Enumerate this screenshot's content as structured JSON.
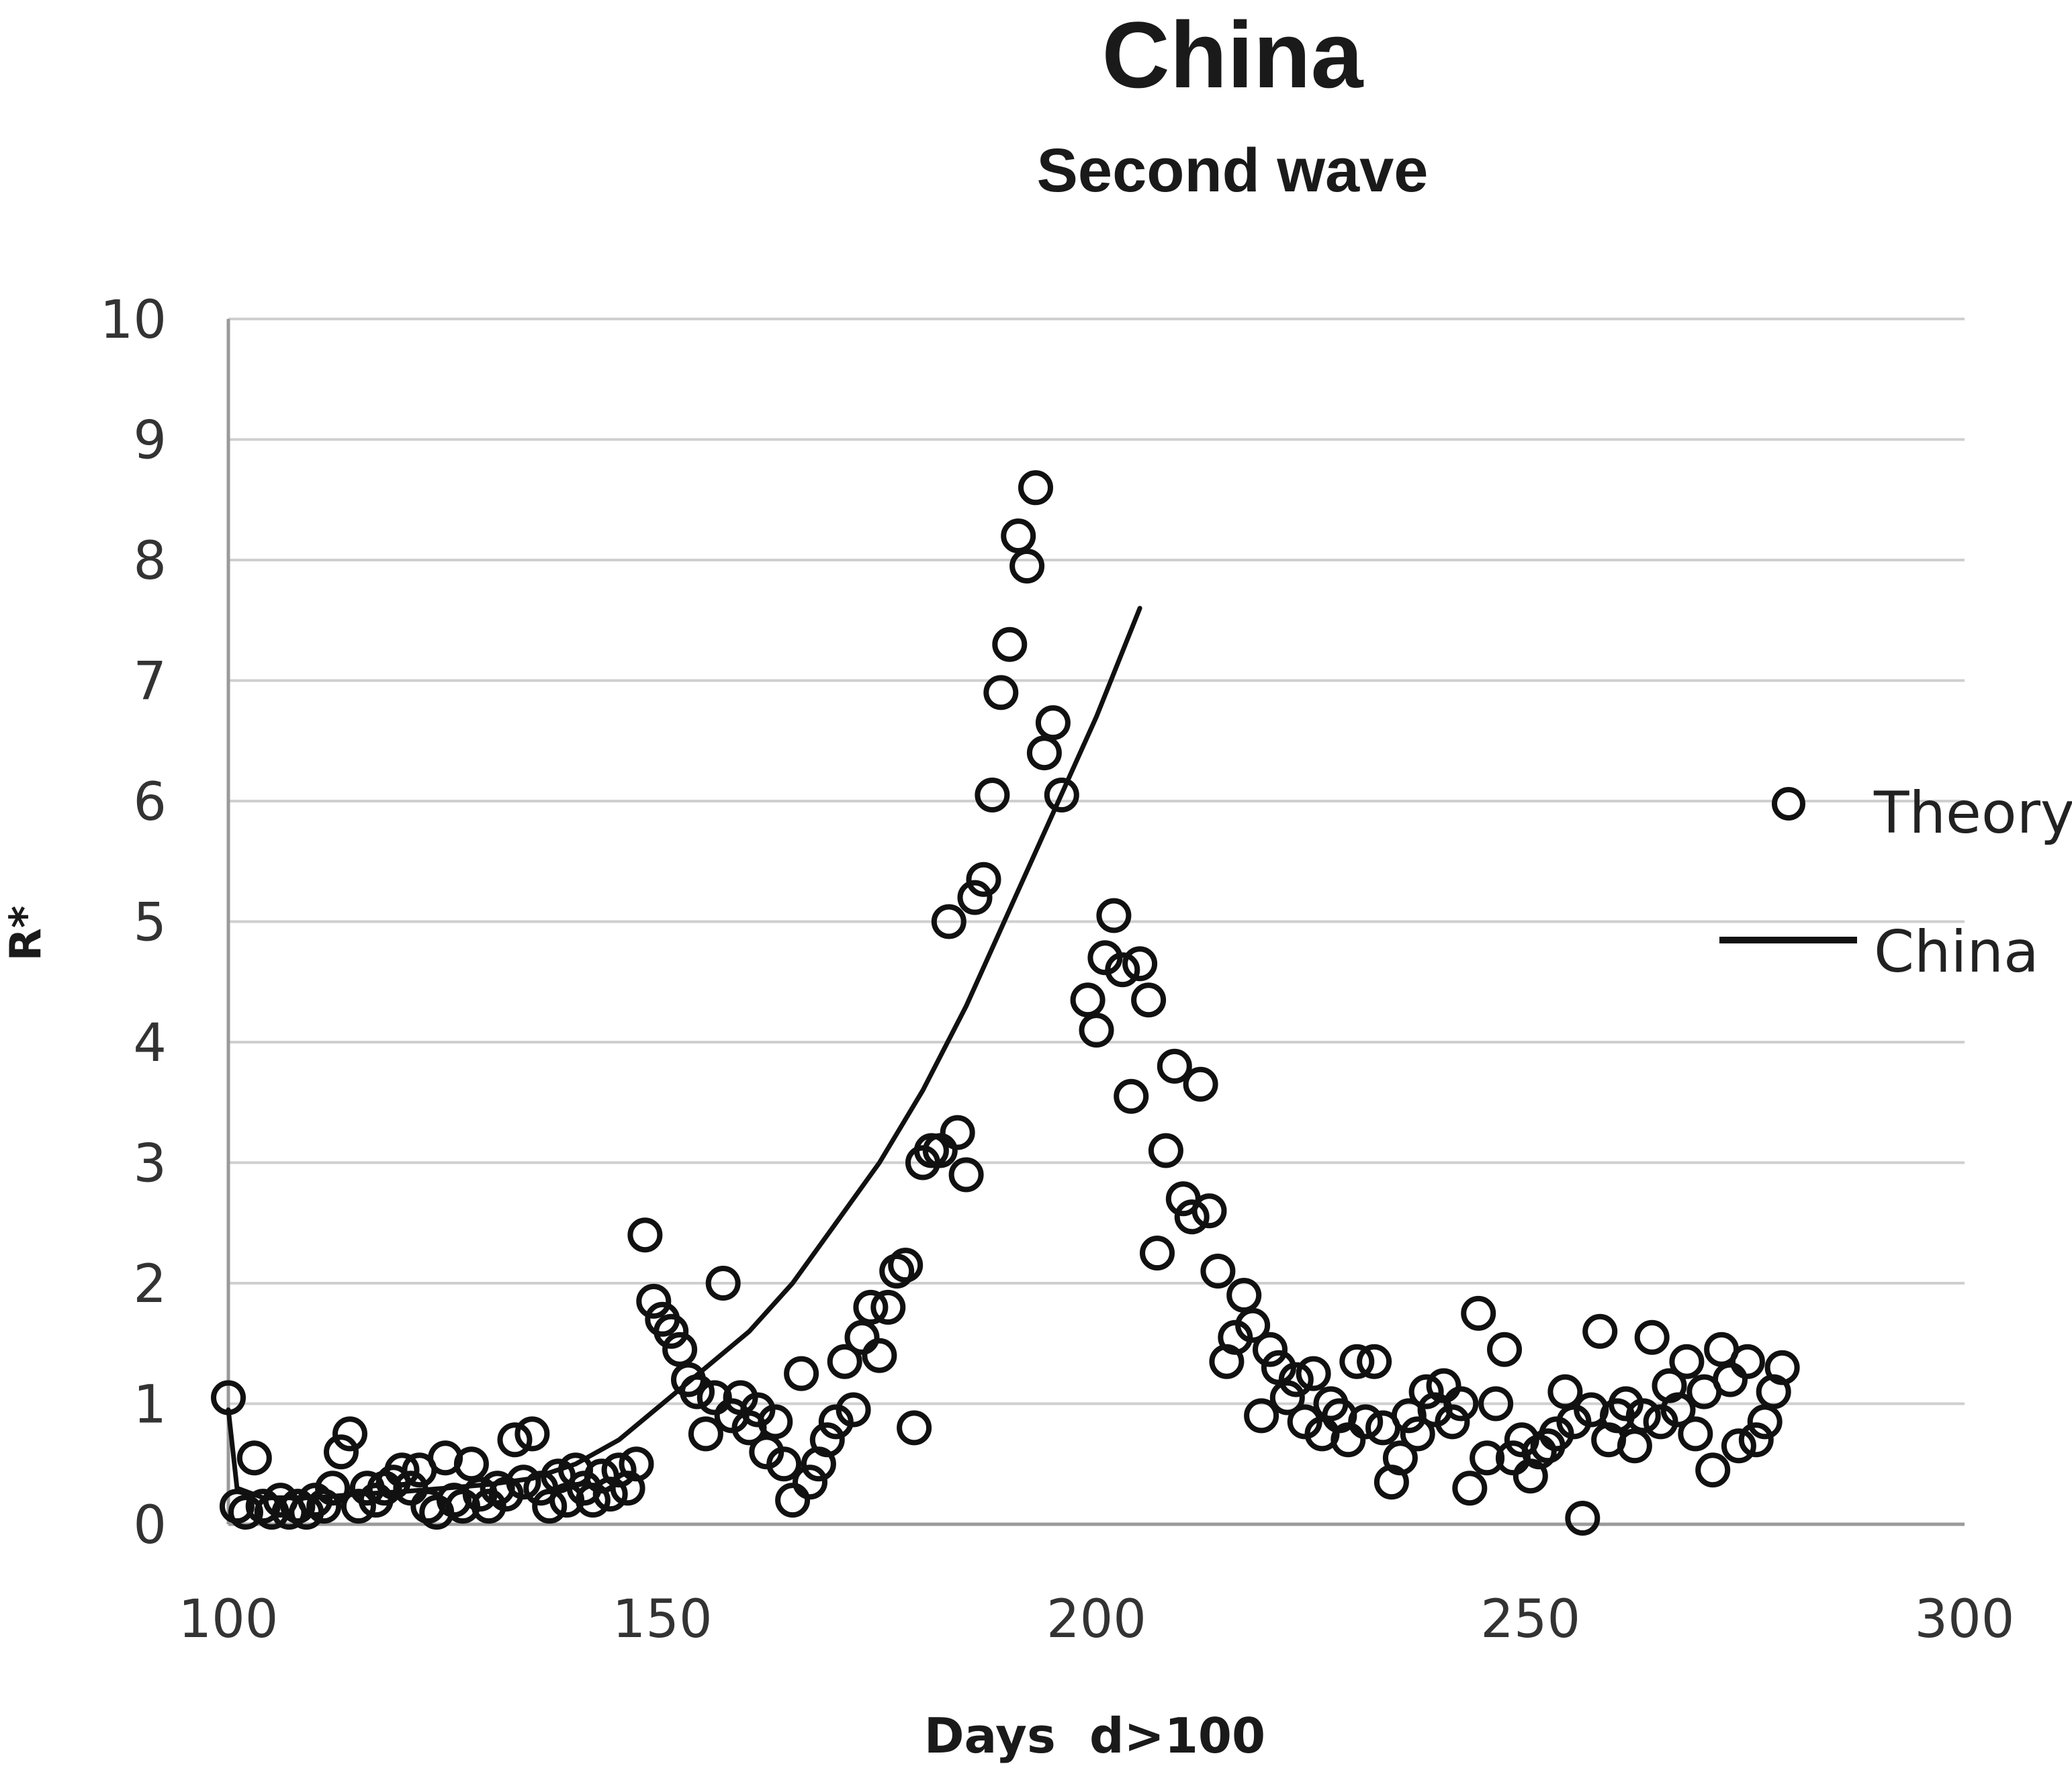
{
  "chart_data": {
    "type": "scatter",
    "title": "China",
    "subtitle": "Second wave",
    "xlabel": "Days  d>100",
    "ylabel": "R*",
    "xlim": [
      100,
      300
    ],
    "ylim": [
      0,
      10
    ],
    "x_ticks": [
      "100",
      "150",
      "200",
      "250",
      "300"
    ],
    "y_ticks": [
      "0",
      "1",
      "2",
      "3",
      "4",
      "5",
      "6",
      "7",
      "8",
      "9",
      "10"
    ],
    "grid": "horizontal",
    "legend_position": "right",
    "colors": {
      "marker": "#111111",
      "line": "#111111",
      "grid": "#cfcfcf"
    },
    "series": [
      {
        "name": "Theory",
        "kind": "markers",
        "marker": "open-circle",
        "points": [
          [
            100,
            1.05
          ],
          [
            101,
            0.15
          ],
          [
            102,
            0.1
          ],
          [
            103,
            0.55
          ],
          [
            104,
            0.15
          ],
          [
            105,
            0.1
          ],
          [
            106,
            0.2
          ],
          [
            107,
            0.1
          ],
          [
            108,
            0.15
          ],
          [
            109,
            0.1
          ],
          [
            110,
            0.2
          ],
          [
            111,
            0.15
          ],
          [
            112,
            0.3
          ],
          [
            113,
            0.6
          ],
          [
            114,
            0.75
          ],
          [
            115,
            0.15
          ],
          [
            116,
            0.3
          ],
          [
            117,
            0.2
          ],
          [
            118,
            0.3
          ],
          [
            119,
            0.35
          ],
          [
            120,
            0.45
          ],
          [
            121,
            0.3
          ],
          [
            122,
            0.45
          ],
          [
            123,
            0.15
          ],
          [
            124,
            0.1
          ],
          [
            125,
            0.55
          ],
          [
            126,
            0.2
          ],
          [
            127,
            0.15
          ],
          [
            128,
            0.5
          ],
          [
            129,
            0.25
          ],
          [
            130,
            0.15
          ],
          [
            131,
            0.3
          ],
          [
            132,
            0.25
          ],
          [
            133,
            0.7
          ],
          [
            134,
            0.35
          ],
          [
            135,
            0.75
          ],
          [
            136,
            0.3
          ],
          [
            137,
            0.15
          ],
          [
            138,
            0.4
          ],
          [
            139,
            0.2
          ],
          [
            140,
            0.45
          ],
          [
            141,
            0.3
          ],
          [
            142,
            0.2
          ],
          [
            143,
            0.4
          ],
          [
            144,
            0.25
          ],
          [
            145,
            0.45
          ],
          [
            146,
            0.3
          ],
          [
            147,
            0.5
          ],
          [
            148,
            2.4
          ],
          [
            149,
            1.85
          ],
          [
            150,
            1.7
          ],
          [
            151,
            1.6
          ],
          [
            152,
            1.45
          ],
          [
            153,
            1.2
          ],
          [
            154,
            1.1
          ],
          [
            155,
            0.75
          ],
          [
            156,
            1.05
          ],
          [
            157,
            2.0
          ],
          [
            158,
            0.9
          ],
          [
            159,
            1.05
          ],
          [
            160,
            0.8
          ],
          [
            161,
            0.95
          ],
          [
            162,
            0.6
          ],
          [
            163,
            0.85
          ],
          [
            164,
            0.5
          ],
          [
            165,
            0.2
          ],
          [
            166,
            1.25
          ],
          [
            167,
            0.35
          ],
          [
            168,
            0.5
          ],
          [
            169,
            0.7
          ],
          [
            170,
            0.85
          ],
          [
            171,
            1.35
          ],
          [
            172,
            0.95
          ],
          [
            173,
            1.55
          ],
          [
            174,
            1.8
          ],
          [
            175,
            1.4
          ],
          [
            176,
            1.8
          ],
          [
            177,
            2.1
          ],
          [
            178,
            2.15
          ],
          [
            179,
            0.8
          ],
          [
            180,
            3.0
          ],
          [
            181,
            3.1
          ],
          [
            182,
            3.1
          ],
          [
            183,
            5.0
          ],
          [
            184,
            3.25
          ],
          [
            185,
            2.9
          ],
          [
            186,
            5.2
          ],
          [
            187,
            5.35
          ],
          [
            188,
            6.05
          ],
          [
            189,
            6.9
          ],
          [
            190,
            7.3
          ],
          [
            191,
            8.2
          ],
          [
            192,
            7.95
          ],
          [
            193,
            8.6
          ],
          [
            194,
            6.4
          ],
          [
            195,
            6.65
          ],
          [
            196,
            6.05
          ],
          [
            199,
            4.35
          ],
          [
            200,
            4.1
          ],
          [
            201,
            4.7
          ],
          [
            202,
            5.05
          ],
          [
            203,
            4.6
          ],
          [
            204,
            3.55
          ],
          [
            205,
            4.65
          ],
          [
            206,
            4.35
          ],
          [
            207,
            2.25
          ],
          [
            208,
            3.1
          ],
          [
            209,
            3.8
          ],
          [
            210,
            2.7
          ],
          [
            211,
            2.55
          ],
          [
            212,
            3.65
          ],
          [
            213,
            2.6
          ],
          [
            214,
            2.1
          ],
          [
            215,
            1.35
          ],
          [
            216,
            1.55
          ],
          [
            217,
            1.9
          ],
          [
            218,
            1.65
          ],
          [
            219,
            0.9
          ],
          [
            220,
            1.45
          ],
          [
            221,
            1.3
          ],
          [
            222,
            1.05
          ],
          [
            223,
            1.2
          ],
          [
            224,
            0.85
          ],
          [
            225,
            1.25
          ],
          [
            226,
            0.75
          ],
          [
            227,
            1.0
          ],
          [
            228,
            0.9
          ],
          [
            229,
            0.7
          ],
          [
            230,
            1.35
          ],
          [
            231,
            0.85
          ],
          [
            232,
            1.35
          ],
          [
            233,
            0.8
          ],
          [
            234,
            0.35
          ],
          [
            235,
            0.55
          ],
          [
            236,
            0.9
          ],
          [
            237,
            0.75
          ],
          [
            238,
            1.1
          ],
          [
            239,
            0.95
          ],
          [
            240,
            1.15
          ],
          [
            241,
            0.85
          ],
          [
            242,
            1.0
          ],
          [
            243,
            0.3
          ],
          [
            244,
            1.75
          ],
          [
            245,
            0.55
          ],
          [
            246,
            1.0
          ],
          [
            247,
            1.45
          ],
          [
            248,
            0.55
          ],
          [
            249,
            0.7
          ],
          [
            250,
            0.4
          ],
          [
            251,
            0.6
          ],
          [
            252,
            0.65
          ],
          [
            253,
            0.75
          ],
          [
            254,
            1.1
          ],
          [
            255,
            0.85
          ],
          [
            256,
            0.05
          ],
          [
            257,
            0.95
          ],
          [
            258,
            1.6
          ],
          [
            259,
            0.7
          ],
          [
            260,
            0.9
          ],
          [
            261,
            1.0
          ],
          [
            262,
            0.65
          ],
          [
            263,
            0.9
          ],
          [
            264,
            1.55
          ],
          [
            265,
            0.85
          ],
          [
            266,
            1.15
          ],
          [
            267,
            0.95
          ],
          [
            268,
            1.35
          ],
          [
            269,
            0.75
          ],
          [
            270,
            1.1
          ],
          [
            271,
            0.45
          ],
          [
            272,
            1.45
          ],
          [
            273,
            1.2
          ],
          [
            274,
            0.65
          ],
          [
            275,
            1.35
          ],
          [
            276,
            0.7
          ],
          [
            277,
            0.85
          ],
          [
            278,
            1.1
          ],
          [
            279,
            1.3
          ]
        ]
      },
      {
        "name": "China",
        "kind": "line",
        "points": [
          [
            100,
            0.95
          ],
          [
            101,
            0.3
          ],
          [
            104,
            0.22
          ],
          [
            110,
            0.22
          ],
          [
            115,
            0.25
          ],
          [
            120,
            0.27
          ],
          [
            125,
            0.3
          ],
          [
            130,
            0.33
          ],
          [
            135,
            0.38
          ],
          [
            140,
            0.5
          ],
          [
            145,
            0.7
          ],
          [
            150,
            1.0
          ],
          [
            155,
            1.3
          ],
          [
            160,
            1.6
          ],
          [
            165,
            2.0
          ],
          [
            170,
            2.5
          ],
          [
            175,
            3.0
          ],
          [
            180,
            3.6
          ],
          [
            185,
            4.3
          ],
          [
            190,
            5.1
          ],
          [
            195,
            5.9
          ],
          [
            200,
            6.7
          ],
          [
            205,
            7.6
          ]
        ]
      }
    ]
  }
}
